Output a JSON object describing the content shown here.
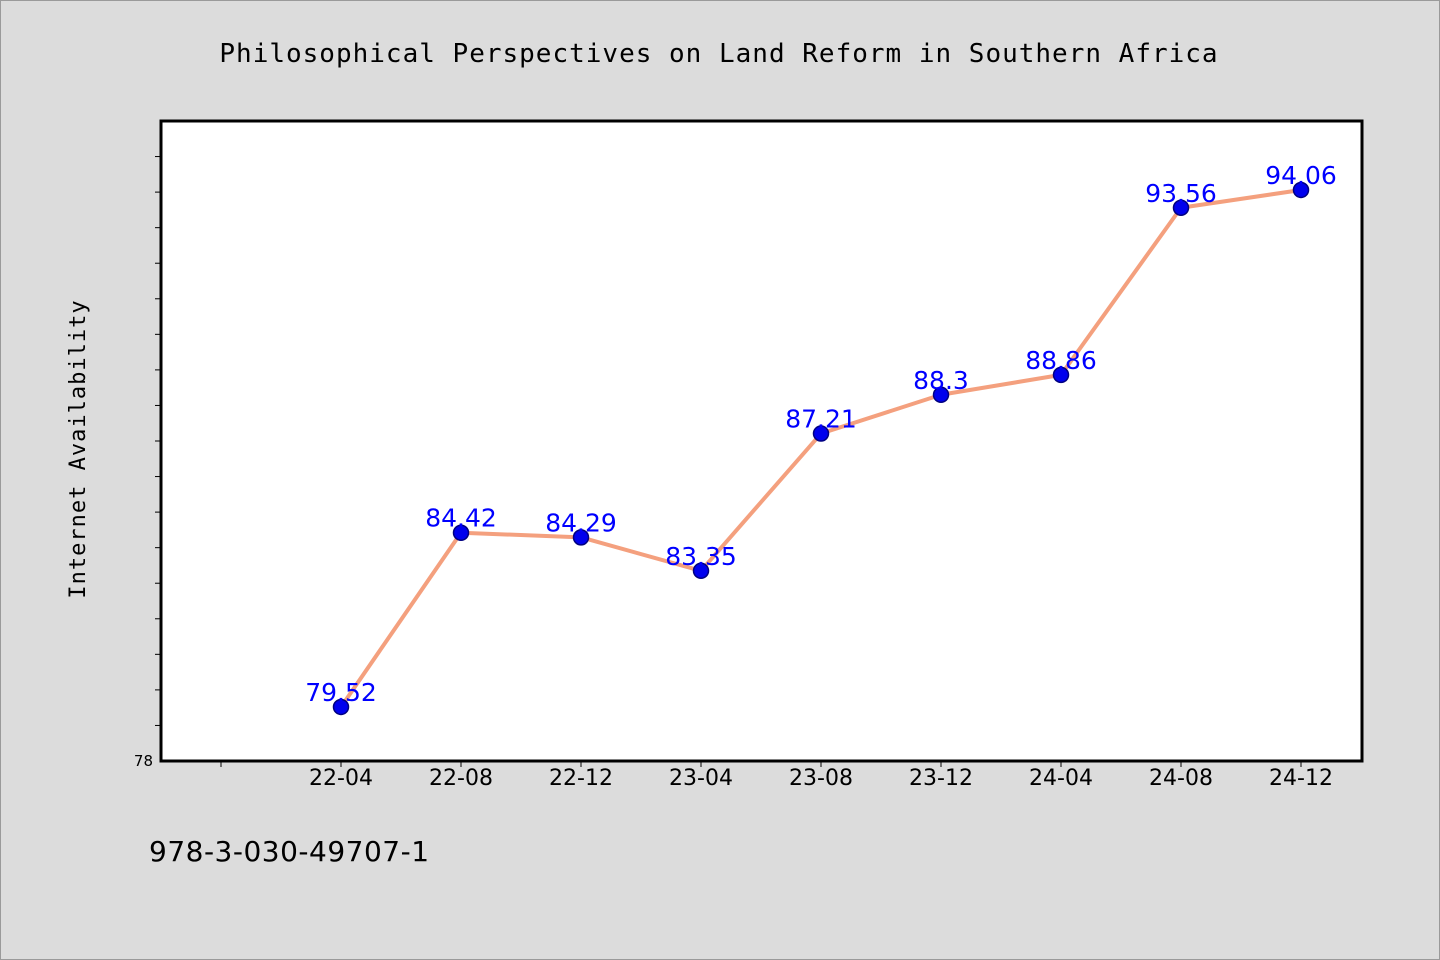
{
  "chart_data": {
    "type": "line",
    "title": "Philosophical Perspectives on Land Reform in Southern Africa",
    "xlabel": "",
    "ylabel": "Internet Availability",
    "categories": [
      "22-04",
      "22-08",
      "22-12",
      "23-04",
      "23-08",
      "23-12",
      "24-04",
      "24-08",
      "24-12"
    ],
    "series": [
      {
        "values": [
          79.52,
          84.42,
          84.29,
          83.35,
          87.21,
          88.3,
          88.86,
          93.56,
          94.06
        ]
      }
    ],
    "data_labels": [
      "79.52",
      "84.42",
      "84.29",
      "83.35",
      "87.21",
      "88.3",
      "88.86",
      "93.56",
      "94.06"
    ],
    "y_min_label": "78",
    "ylim": [
      78,
      96
    ],
    "y_minor_tick_step": 1,
    "grid": false,
    "legend": "none",
    "colors": {
      "line": "#f4a07e",
      "marker": "#0000ee",
      "marker_edge": "#000080",
      "data_label": "#0000ff",
      "plot_background": "#ffffff",
      "figure_background": "#dcdcdc"
    }
  },
  "footer": {
    "isbn": "978-3-030-49707-1"
  }
}
